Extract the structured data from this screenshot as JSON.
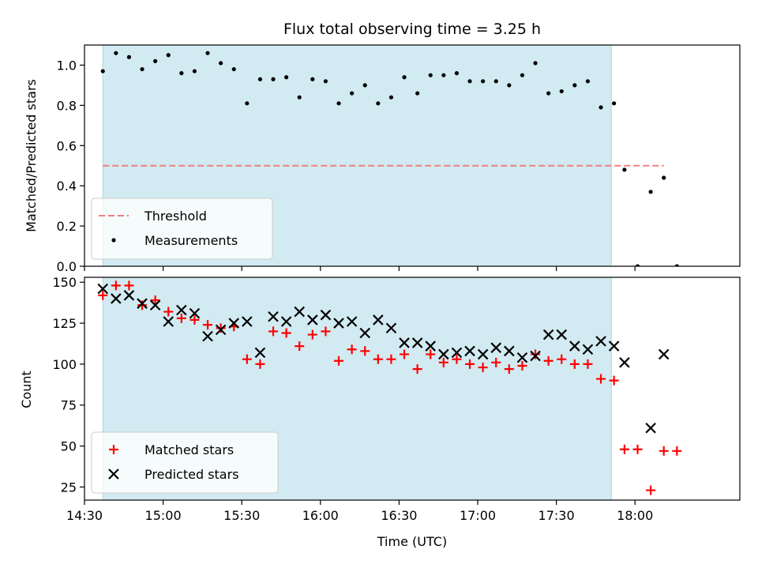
{
  "title": "Flux total observing time = 3.25 h",
  "colors": {
    "shade": "#add8e6",
    "threshold": "#f08080",
    "measurement": "#000000",
    "matched": "#ff0000",
    "predicted": "#000000"
  },
  "chart_data": [
    {
      "type": "scatter",
      "ylabel": "Matched/Predicted stars",
      "ylim": [
        0,
        1.1
      ],
      "yticks": [
        "0.0",
        "0.2",
        "0.4",
        "0.6",
        "0.8",
        "1.0"
      ],
      "xlim": [
        "14:30",
        "18:40"
      ],
      "shaded_interval": [
        "14:37",
        "17:51"
      ],
      "threshold": {
        "name": "Threshold",
        "value": 0.5,
        "x_range": [
          "14:37",
          "18:11"
        ],
        "style": "dashed"
      },
      "series": [
        {
          "name": "Measurements",
          "marker": "dot",
          "points": [
            [
              "14:37",
              0.97
            ],
            [
              "14:42",
              1.06
            ],
            [
              "14:47",
              1.04
            ],
            [
              "14:52",
              0.98
            ],
            [
              "14:57",
              1.02
            ],
            [
              "15:02",
              1.05
            ],
            [
              "15:07",
              0.96
            ],
            [
              "15:12",
              0.97
            ],
            [
              "15:17",
              1.06
            ],
            [
              "15:22",
              1.01
            ],
            [
              "15:27",
              0.98
            ],
            [
              "15:32",
              0.81
            ],
            [
              "15:37",
              0.93
            ],
            [
              "15:42",
              0.93
            ],
            [
              "15:47",
              0.94
            ],
            [
              "15:52",
              0.84
            ],
            [
              "15:57",
              0.93
            ],
            [
              "16:02",
              0.92
            ],
            [
              "16:07",
              0.81
            ],
            [
              "16:12",
              0.86
            ],
            [
              "16:17",
              0.9
            ],
            [
              "16:22",
              0.81
            ],
            [
              "16:27",
              0.84
            ],
            [
              "16:32",
              0.94
            ],
            [
              "16:37",
              0.86
            ],
            [
              "16:42",
              0.95
            ],
            [
              "16:47",
              0.95
            ],
            [
              "16:52",
              0.96
            ],
            [
              "16:57",
              0.92
            ],
            [
              "17:02",
              0.92
            ],
            [
              "17:07",
              0.92
            ],
            [
              "17:12",
              0.9
            ],
            [
              "17:17",
              0.95
            ],
            [
              "17:22",
              1.01
            ],
            [
              "17:27",
              0.86
            ],
            [
              "17:32",
              0.87
            ],
            [
              "17:37",
              0.9
            ],
            [
              "17:42",
              0.92
            ],
            [
              "17:47",
              0.79
            ],
            [
              "17:52",
              0.81
            ],
            [
              "17:56",
              0.48
            ],
            [
              "18:01",
              0.0
            ],
            [
              "18:06",
              0.37
            ],
            [
              "18:11",
              0.44
            ],
            [
              "18:16",
              0.0
            ]
          ]
        }
      ],
      "legend": {
        "placement": "lower-left",
        "entries": [
          "Threshold",
          "Measurements"
        ]
      }
    },
    {
      "type": "scatter",
      "xlabel": "Time (UTC)",
      "ylabel": "Count",
      "ylim": [
        17,
        153
      ],
      "yticks": [
        "25",
        "50",
        "75",
        "100",
        "125",
        "150"
      ],
      "xlim": [
        "14:30",
        "18:40"
      ],
      "xticks": [
        "14:30",
        "15:00",
        "15:30",
        "16:00",
        "16:30",
        "17:00",
        "17:30",
        "18:00"
      ],
      "shaded_interval": [
        "14:37",
        "17:51"
      ],
      "series": [
        {
          "name": "Matched stars",
          "marker": "plus",
          "points": [
            [
              "14:37",
              142
            ],
            [
              "14:42",
              148
            ],
            [
              "14:47",
              148
            ],
            [
              "14:52",
              136
            ],
            [
              "14:57",
              139
            ],
            [
              "15:02",
              132
            ],
            [
              "15:07",
              128
            ],
            [
              "15:12",
              127
            ],
            [
              "15:17",
              124
            ],
            [
              "15:22",
              122
            ],
            [
              "15:27",
              123
            ],
            [
              "15:32",
              103
            ],
            [
              "15:37",
              100
            ],
            [
              "15:42",
              120
            ],
            [
              "15:47",
              119
            ],
            [
              "15:52",
              111
            ],
            [
              "15:57",
              118
            ],
            [
              "16:02",
              120
            ],
            [
              "16:07",
              102
            ],
            [
              "16:12",
              109
            ],
            [
              "16:17",
              108
            ],
            [
              "16:22",
              103
            ],
            [
              "16:27",
              103
            ],
            [
              "16:32",
              106
            ],
            [
              "16:37",
              97
            ],
            [
              "16:42",
              106
            ],
            [
              "16:47",
              101
            ],
            [
              "16:52",
              103
            ],
            [
              "16:57",
              100
            ],
            [
              "17:02",
              98
            ],
            [
              "17:07",
              101
            ],
            [
              "17:12",
              97
            ],
            [
              "17:17",
              99
            ],
            [
              "17:22",
              106
            ],
            [
              "17:27",
              102
            ],
            [
              "17:32",
              103
            ],
            [
              "17:37",
              100
            ],
            [
              "17:42",
              100
            ],
            [
              "17:47",
              91
            ],
            [
              "17:52",
              90
            ],
            [
              "17:56",
              48
            ],
            [
              "18:01",
              48
            ],
            [
              "18:06",
              23
            ],
            [
              "18:11",
              47
            ],
            [
              "18:16",
              47
            ]
          ]
        },
        {
          "name": "Predicted stars",
          "marker": "x",
          "points": [
            [
              "14:37",
              146
            ],
            [
              "14:42",
              140
            ],
            [
              "14:47",
              142
            ],
            [
              "14:52",
              137
            ],
            [
              "14:57",
              136
            ],
            [
              "15:02",
              126
            ],
            [
              "15:07",
              133
            ],
            [
              "15:12",
              131
            ],
            [
              "15:17",
              117
            ],
            [
              "15:22",
              121
            ],
            [
              "15:27",
              125
            ],
            [
              "15:32",
              126
            ],
            [
              "15:37",
              107
            ],
            [
              "15:42",
              129
            ],
            [
              "15:47",
              126
            ],
            [
              "15:52",
              132
            ],
            [
              "15:57",
              127
            ],
            [
              "16:02",
              130
            ],
            [
              "16:07",
              125
            ],
            [
              "16:12",
              126
            ],
            [
              "16:17",
              119
            ],
            [
              "16:22",
              127
            ],
            [
              "16:27",
              122
            ],
            [
              "16:32",
              113
            ],
            [
              "16:37",
              113
            ],
            [
              "16:42",
              111
            ],
            [
              "16:47",
              106
            ],
            [
              "16:52",
              107
            ],
            [
              "16:57",
              108
            ],
            [
              "17:02",
              106
            ],
            [
              "17:07",
              110
            ],
            [
              "17:12",
              108
            ],
            [
              "17:17",
              104
            ],
            [
              "17:22",
              105
            ],
            [
              "17:27",
              118
            ],
            [
              "17:32",
              118
            ],
            [
              "17:37",
              111
            ],
            [
              "17:42",
              109
            ],
            [
              "17:47",
              114
            ],
            [
              "17:52",
              111
            ],
            [
              "17:56",
              101
            ],
            [
              "18:06",
              61
            ],
            [
              "18:11",
              106
            ]
          ]
        }
      ],
      "legend": {
        "placement": "lower-left",
        "entries": [
          "Matched stars",
          "Predicted stars"
        ]
      }
    }
  ]
}
